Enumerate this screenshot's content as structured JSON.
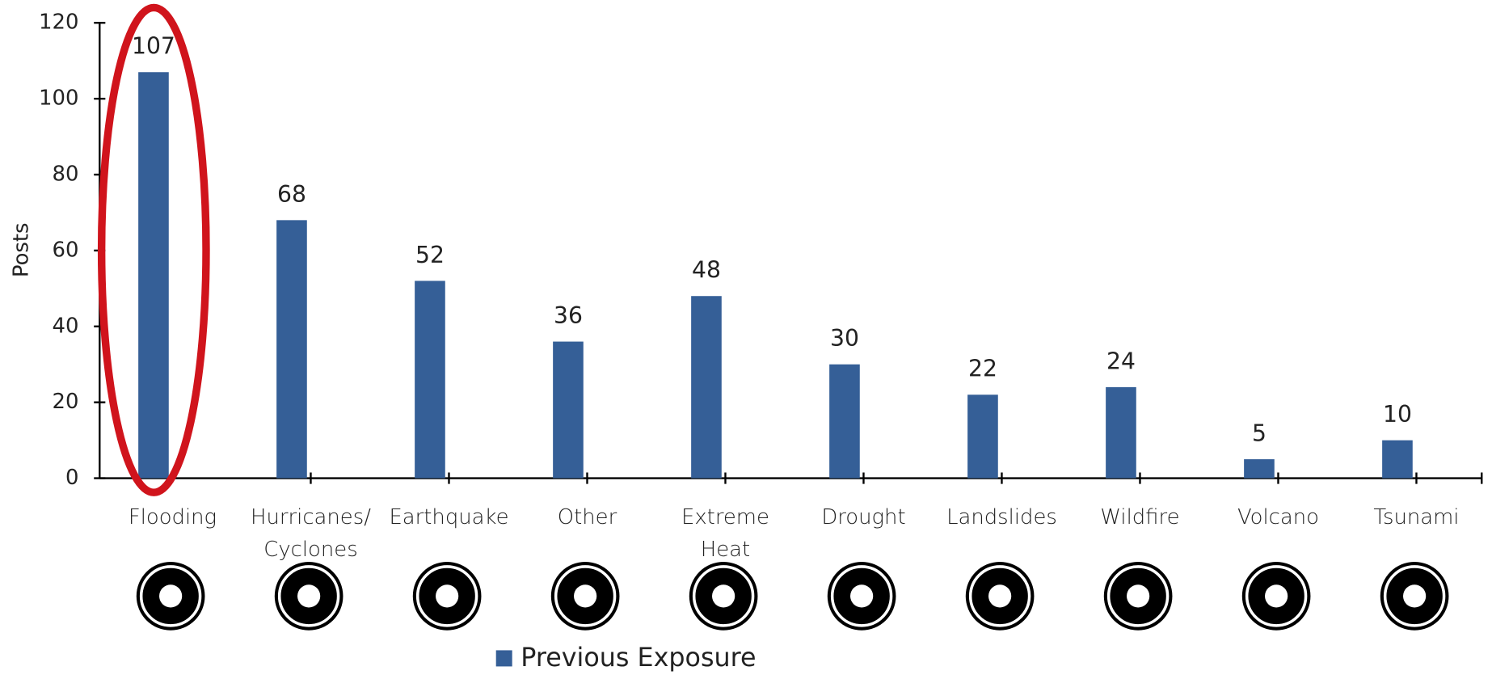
{
  "chart_data": {
    "type": "bar",
    "y_label": "Posts",
    "categories": [
      "Flooding",
      "Hurricanes/ Cyclones",
      "Earthquake",
      "Other",
      "Extreme Heat",
      "Drought",
      "Landslides",
      "Wildfire",
      "Volcano",
      "Tsunami"
    ],
    "series": [
      {
        "name": "Previous Exposure",
        "color": "#355f97",
        "values": [
          107,
          68,
          52,
          36,
          48,
          30,
          22,
          24,
          5,
          10
        ]
      }
    ],
    "ylim": [
      0,
      120
    ],
    "yticks": [
      0,
      20,
      40,
      60,
      80,
      100,
      120
    ],
    "grid": false,
    "legend": "bottom"
  }
}
